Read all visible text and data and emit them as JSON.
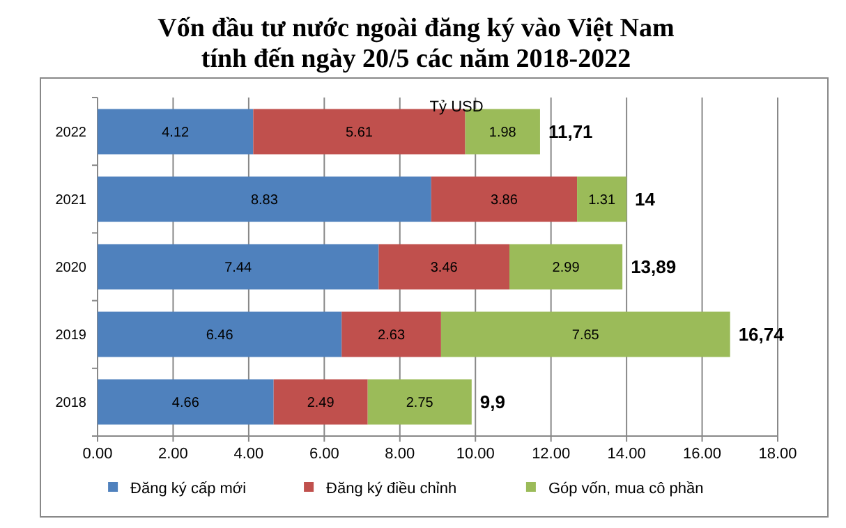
{
  "chart_data": {
    "type": "bar",
    "orientation": "horizontal",
    "stacked": true,
    "title": "Vốn đầu tư nước ngoài đăng ký vào Việt Nam\ntính đến ngày 20/5 các năm 2018-2022",
    "annotations": [
      "Tỷ USD"
    ],
    "categories": [
      "2022",
      "2021",
      "2020",
      "2019",
      "2018"
    ],
    "series": [
      {
        "name": "Đăng ký cấp mới",
        "color": "#4f81bd",
        "values": [
          4.12,
          8.83,
          7.44,
          6.46,
          4.66
        ]
      },
      {
        "name": "Đăng ký điều chỉnh",
        "color": "#c0504d",
        "values": [
          5.61,
          3.86,
          3.46,
          2.63,
          2.49
        ]
      },
      {
        "name": "Góp vốn, mua cô phần",
        "color": "#9bbb59",
        "values": [
          1.98,
          1.31,
          2.99,
          7.65,
          2.75
        ]
      }
    ],
    "data_labels": true,
    "totals": [
      "11,71",
      "14",
      "13,89",
      "16,74",
      "9,9"
    ],
    "xlim": [
      0,
      18
    ],
    "xticks": [
      {
        "value": 0,
        "label": "0.00"
      },
      {
        "value": 2,
        "label": "2.00"
      },
      {
        "value": 4,
        "label": "4.00"
      },
      {
        "value": 6,
        "label": "6.00"
      },
      {
        "value": 8,
        "label": "8.00"
      },
      {
        "value": 10,
        "label": "10.00"
      },
      {
        "value": 12,
        "label": "12.00"
      },
      {
        "value": 14,
        "label": "14.00"
      },
      {
        "value": 16,
        "label": "16.00"
      },
      {
        "value": 18,
        "label": "18.00"
      }
    ],
    "grid": "x",
    "legend": "bottom"
  }
}
